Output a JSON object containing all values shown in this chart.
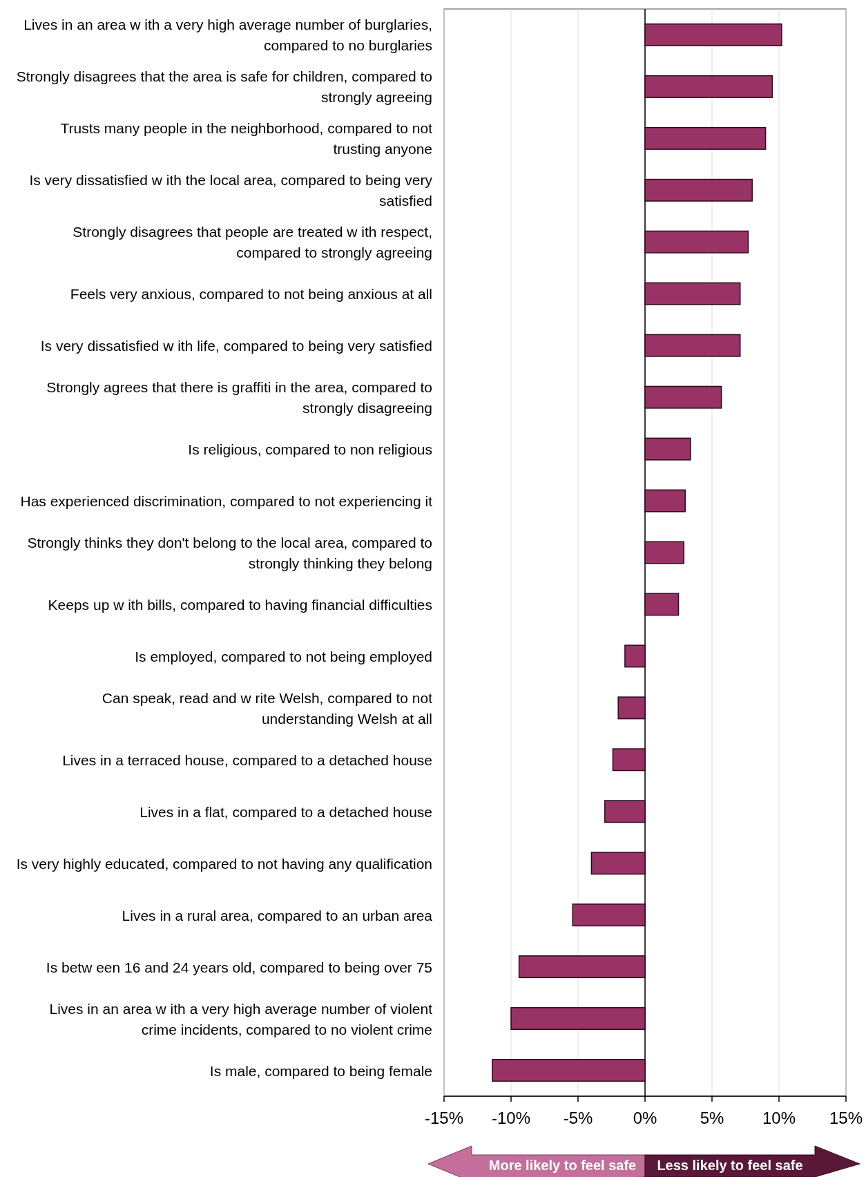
{
  "chart_data": {
    "type": "bar",
    "orientation": "horizontal",
    "categories": [
      "Lives in an area w ith a very high average number of burglaries, compared to no burglaries",
      "Strongly disagrees that the area is safe for children, compared to strongly agreeing",
      "Trusts many people in the neighborhood, compared to not trusting anyone",
      "Is very dissatisfied w ith the local area, compared to being very satisfied",
      "Strongly disagrees that people are treated w ith respect, compared to strongly agreeing",
      "Feels very anxious, compared to not being anxious at all",
      "Is very dissatisfied w ith life, compared to being very satisfied",
      "Strongly agrees that there is graffiti in the area, compared to strongly disagreeing",
      "Is religious, compared to non religious",
      "Has experienced discrimination, compared to not experiencing it",
      "Strongly thinks they don't belong to the local area, compared to strongly thinking they belong",
      "Keeps up w ith bills, compared to having financial difficulties",
      "Is employed, compared to not being employed",
      "Can speak, read and w rite Welsh, compared to not understanding Welsh at all",
      "Lives in a terraced house, compared to a detached house",
      "Lives in a flat, compared to a detached house",
      "Is very highly educated, compared to not having any qualification",
      "Lives in a rural area, compared to an urban area",
      "Is betw een 16 and 24 years old, compared to being over 75",
      "Lives in an area w ith a very high average number of violent crime incidents, compared to no violent crime",
      "Is male, compared to being female"
    ],
    "values": [
      0.102,
      0.095,
      0.09,
      0.08,
      0.077,
      0.071,
      0.071,
      0.057,
      0.034,
      0.03,
      0.029,
      0.025,
      -0.015,
      -0.02,
      -0.024,
      -0.03,
      -0.04,
      -0.054,
      -0.094,
      -0.1,
      -0.114
    ],
    "color": "#993366",
    "xlim": [
      -0.15,
      0.15
    ],
    "xticks": [
      {
        "value": -0.15,
        "label": "-15%"
      },
      {
        "value": -0.1,
        "label": "-10%"
      },
      {
        "value": -0.05,
        "label": "-5%"
      },
      {
        "value": 0,
        "label": "0%"
      },
      {
        "value": 0.05,
        "label": "5%"
      },
      {
        "value": 0.1,
        "label": "10%"
      },
      {
        "value": 0.15,
        "label": "15%"
      }
    ],
    "grid": "x",
    "annotations": [
      "More likely to feel safe",
      "Less likely to feel safe"
    ]
  }
}
